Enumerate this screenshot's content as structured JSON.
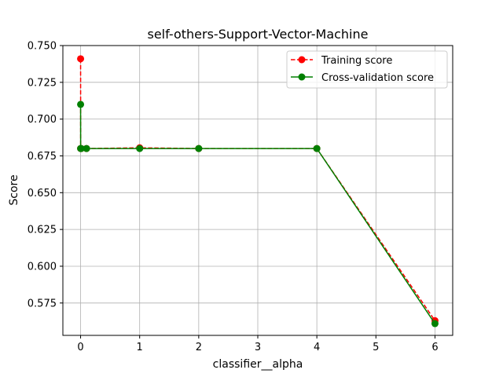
{
  "chart_data": {
    "type": "line",
    "title": "self-others-Support-Vector-Machine",
    "xlabel": "classifier__alpha",
    "ylabel": "Score",
    "xlim": [
      -0.3,
      6.3
    ],
    "ylim": [
      0.553,
      0.75
    ],
    "x_ticks": [
      0,
      1,
      2,
      3,
      4,
      5,
      6
    ],
    "y_ticks": [
      0.575,
      0.6,
      0.625,
      0.65,
      0.675,
      0.7,
      0.725,
      0.75
    ],
    "y_tick_labels": [
      "0.575",
      "0.600",
      "0.625",
      "0.650",
      "0.675",
      "0.700",
      "0.725",
      "0.750"
    ],
    "grid": true,
    "legend_position": "top-right",
    "series": [
      {
        "name": "Training score",
        "color": "#ff0000",
        "linestyle": "dashed",
        "x": [
          0.0001,
          0.001,
          0.01,
          0.1,
          1,
          2,
          4,
          6
        ],
        "y": [
          0.741,
          0.68,
          0.68,
          0.68,
          0.6805,
          0.68,
          0.68,
          0.563
        ]
      },
      {
        "name": "Cross-validation score",
        "color": "#008000",
        "linestyle": "solid",
        "x": [
          0.0001,
          0.001,
          0.01,
          0.1,
          1,
          2,
          4,
          6
        ],
        "y": [
          0.71,
          0.68,
          0.68,
          0.68,
          0.68,
          0.68,
          0.68,
          0.561
        ]
      }
    ]
  }
}
